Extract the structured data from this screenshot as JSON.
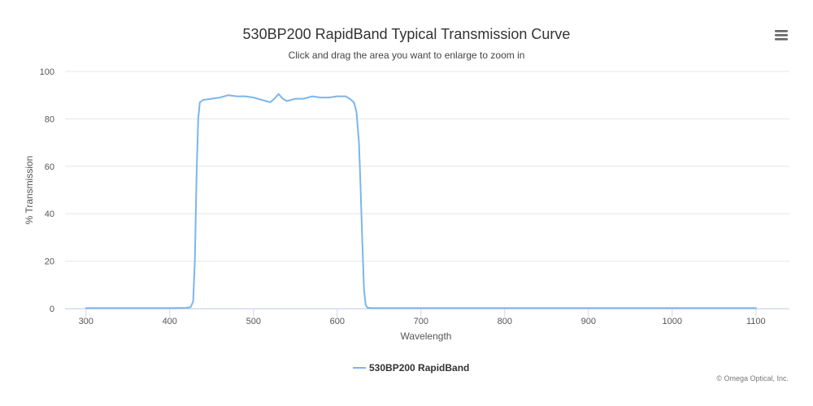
{
  "chart_data": {
    "type": "line",
    "title": "530BP200 RapidBand Typical Transmission Curve",
    "subtitle": "Click and drag the area you want to enlarge to zoom in",
    "xlabel": "Wavelength",
    "ylabel": "% Transmission",
    "xlim": [
      275,
      1140
    ],
    "ylim": [
      0,
      100
    ],
    "x_ticks": [
      300,
      400,
      500,
      600,
      700,
      800,
      900,
      1000,
      1100
    ],
    "y_ticks": [
      0,
      20,
      40,
      60,
      80,
      100
    ],
    "grid": true,
    "legend_position": "bottom-center",
    "series": [
      {
        "name": "530BP200 RapidBand",
        "color": "#7cb5ec",
        "x": [
          300,
          400,
          420,
          425,
          428,
          430,
          432,
          434,
          436,
          440,
          450,
          460,
          470,
          480,
          490,
          500,
          510,
          515,
          520,
          525,
          530,
          535,
          540,
          545,
          550,
          560,
          570,
          580,
          590,
          600,
          610,
          615,
          620,
          623,
          626,
          628,
          630,
          632,
          634,
          636,
          640,
          700,
          800,
          900,
          1000,
          1100
        ],
        "y": [
          0.2,
          0.2,
          0.3,
          0.6,
          3,
          20,
          55,
          80,
          87,
          88,
          88.5,
          89,
          90,
          89.5,
          89.5,
          89,
          88,
          87.5,
          87,
          88.5,
          90.5,
          88.5,
          87.5,
          88,
          88.5,
          88.5,
          89.5,
          89,
          89,
          89.5,
          89.5,
          88.5,
          87,
          83,
          70,
          50,
          28,
          8,
          1.5,
          0.4,
          0.2,
          0.2,
          0.2,
          0.2,
          0.2,
          0.2
        ]
      }
    ],
    "menu_icon": "hamburger-icon",
    "credits": "© Omega Optical, Inc.",
    "colors": {
      "grid": "#e6e6e6",
      "axis": "#ccd6eb",
      "series": "#7cb5ec"
    }
  }
}
